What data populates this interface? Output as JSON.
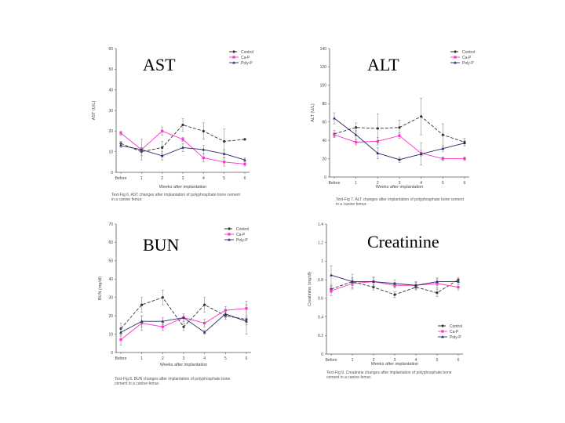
{
  "colors": {
    "control": "#333333",
    "cap": "#ff33cc",
    "polyp": "#2a2a66",
    "axis": "#555555",
    "error": "#777777"
  },
  "charts": [
    {
      "id": "ast",
      "big_title": "AST",
      "caption": "Text-Fig 6. AST changes after implantation of polyphosphate bone cement\nin a canine femur.",
      "chart_data": {
        "type": "line",
        "title": "AST",
        "xlabel": "Weeks after implantation",
        "ylabel": "AST (U/L)",
        "categories": [
          "Before",
          "1",
          "2",
          "3",
          "4",
          "5",
          "6"
        ],
        "ylim": [
          0,
          60
        ],
        "yticks": [
          0,
          10,
          20,
          30,
          40,
          50,
          60
        ],
        "legend_position": "top-right",
        "series": [
          {
            "name": "Control",
            "key": "control",
            "marker": "dot",
            "dash": "4,2",
            "values": [
              14,
              10,
              12,
              23,
              20,
              15,
              16
            ],
            "errors": [
              1,
              2,
              3,
              3,
              4,
              6,
              0
            ]
          },
          {
            "name": "Ca-P",
            "key": "cap",
            "marker": "square",
            "dash": "none",
            "values": [
              19,
              11,
              20,
              16,
              7,
              5,
              4
            ],
            "errors": [
              1,
              1,
              2,
              1,
              2,
              2,
              1
            ]
          },
          {
            "name": "Poly-P",
            "key": "polyp",
            "marker": "triangle",
            "dash": "none",
            "values": [
              13,
              11,
              8,
              12,
              11,
              9,
              6
            ],
            "errors": [
              1,
              5,
              2,
              2,
              2,
              2,
              1
            ]
          }
        ]
      }
    },
    {
      "id": "alt",
      "big_title": "ALT",
      "caption": "Text-Fig 7. ALT changes after implantation of polyphosphate bone cement\nin a canine femur.",
      "chart_data": {
        "type": "line",
        "title": "ALT",
        "xlabel": "Weeks after implantation",
        "ylabel": "ALT (U/L)",
        "categories": [
          "Before",
          "1",
          "2",
          "3",
          "4",
          "5",
          "6"
        ],
        "ylim": [
          0,
          140
        ],
        "yticks": [
          0,
          20,
          40,
          60,
          80,
          100,
          120,
          140
        ],
        "legend_position": "top-right",
        "series": [
          {
            "name": "Control",
            "key": "control",
            "marker": "dot",
            "dash": "4,2",
            "values": [
              47,
              54,
              53,
              54,
              66,
              46,
              38
            ],
            "errors": [
              4,
              5,
              16,
              8,
              20,
              12,
              4
            ]
          },
          {
            "name": "Ca-P",
            "key": "cap",
            "marker": "square",
            "dash": "none",
            "values": [
              46,
              38,
              39,
              45,
              26,
              20,
              20
            ],
            "errors": [
              2,
              3,
              4,
              3,
              3,
              2,
              2
            ]
          },
          {
            "name": "Poly-P",
            "key": "polyp",
            "marker": "triangle",
            "dash": "none",
            "values": [
              64,
              46,
              26,
              19,
              25,
              31,
              37
            ],
            "errors": [
              6,
              5,
              6,
              3,
              12,
              3,
              3
            ]
          }
        ]
      }
    },
    {
      "id": "bun",
      "big_title": "BUN",
      "caption": "Text-Fig 8. BUN changes after implantation of polyphosphate bone\ncement in a canine femur.",
      "chart_data": {
        "type": "line",
        "title": "BUN",
        "xlabel": "Weeks after implantation",
        "ylabel": "BUN (mg/dl)",
        "categories": [
          "Before",
          "1",
          "2",
          "3",
          "4",
          "5",
          "6"
        ],
        "ylim": [
          0,
          70
        ],
        "yticks": [
          0,
          10,
          20,
          30,
          40,
          50,
          60,
          70
        ],
        "legend_position": "top-right",
        "series": [
          {
            "name": "Control",
            "key": "control",
            "marker": "dot",
            "dash": "4,2",
            "values": [
              13,
              26,
              30,
              14,
              26,
              20,
              18
            ],
            "errors": [
              3,
              4,
              4,
              2,
              4,
              2,
              8
            ]
          },
          {
            "name": "Ca-P",
            "key": "cap",
            "marker": "square",
            "dash": "none",
            "values": [
              7,
              16,
              14,
              19,
              16,
              23,
              24
            ],
            "errors": [
              3,
              4,
              2,
              2,
              2,
              2,
              4
            ]
          },
          {
            "name": "Poly-P",
            "key": "polyp",
            "marker": "triangle",
            "dash": "none",
            "values": [
              11,
              17,
              17,
              19,
              11,
              21,
              17
            ],
            "errors": [
              2,
              3,
              2,
              2,
              1,
              2,
              2
            ]
          }
        ]
      }
    },
    {
      "id": "creatinine",
      "big_title": "Creatinine",
      "caption": "Text-Fig 9. Creatinine changes after implantation of polyphosphate bone\ncement in a canine femur.",
      "chart_data": {
        "type": "line",
        "title": "Creatinine",
        "xlabel": "Weeks after implantation",
        "ylabel": "Creatinine (mg/dl)",
        "categories": [
          "Before",
          "1",
          "2",
          "3",
          "4",
          "5",
          "6"
        ],
        "ylim": [
          0,
          1.4
        ],
        "yticks": [
          0,
          0.2,
          0.4,
          0.6,
          0.8,
          1,
          1.2,
          1.4
        ],
        "legend_position": "bottom-right",
        "series": [
          {
            "name": "Control",
            "key": "control",
            "marker": "dot",
            "dash": "4,2",
            "values": [
              0.7,
              0.78,
              0.72,
              0.64,
              0.72,
              0.66,
              0.8
            ],
            "errors": [
              0.04,
              0.04,
              0.03,
              0.03,
              0.03,
              0.04,
              0.02
            ]
          },
          {
            "name": "Ca-P",
            "key": "cap",
            "marker": "square",
            "dash": "none",
            "values": [
              0.68,
              0.76,
              0.78,
              0.74,
              0.74,
              0.76,
              0.72
            ],
            "errors": [
              0.05,
              0.05,
              0.04,
              0.03,
              0.03,
              0.05,
              0.03
            ]
          },
          {
            "name": "Poly-P",
            "key": "polyp",
            "marker": "triangle",
            "dash": "none",
            "values": [
              0.85,
              0.78,
              0.78,
              0.76,
              0.74,
              0.78,
              0.78
            ],
            "errors": [
              0.1,
              0.08,
              0.05,
              0.04,
              0.04,
              0.04,
              0.03
            ]
          }
        ]
      }
    }
  ]
}
